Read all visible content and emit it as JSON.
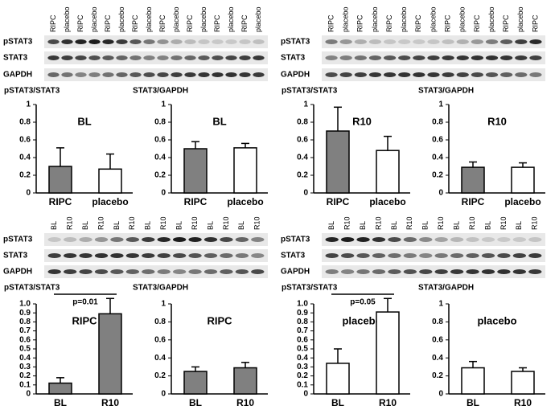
{
  "blots": [
    {
      "lanes": [
        "RIPC",
        "placebo",
        "RIPC",
        "placebo",
        "RIPC",
        "placebo",
        "RIPC",
        "placebo",
        "RIPC",
        "placebo",
        "RIPC",
        "placebo",
        "RIPC",
        "placebo",
        "RIPC",
        "placebo"
      ],
      "rows": [
        "pSTAT3",
        "STAT3",
        "GAPDH"
      ]
    },
    {
      "lanes": [
        "RIPC",
        "placebo",
        "RIPC",
        "placebo",
        "RIPC",
        "placebo",
        "RIPC",
        "placebo",
        "RIPC",
        "placebo",
        "RIPC",
        "placebo",
        "RIPC",
        "placebo",
        "RIPC"
      ],
      "rows": [
        "pSTAT3",
        "STAT3",
        "GAPDH"
      ]
    },
    {
      "lanes": [
        "BL",
        "R10",
        "BL",
        "R10",
        "BL",
        "R10",
        "BL",
        "R10",
        "BL",
        "R10",
        "BL",
        "R10",
        "BL",
        "R10"
      ],
      "rows": [
        "pSTAT3",
        "STAT3",
        "GAPDH"
      ]
    },
    {
      "lanes": [
        "BL",
        "R10",
        "BL",
        "R10",
        "BL",
        "R10",
        "BL",
        "R10",
        "BL",
        "R10",
        "BL",
        "R10",
        "BL",
        "R10"
      ],
      "rows": [
        "pSTAT3",
        "STAT3",
        "GAPDH"
      ]
    }
  ],
  "chart_data": [
    {
      "type": "bar",
      "title": "BL",
      "y_label": "pSTAT3/STAT3",
      "categories": [
        "RIPC",
        "placebo"
      ],
      "values": [
        0.3,
        0.27
      ],
      "errors": [
        0.21,
        0.17
      ],
      "colors": [
        "#808080",
        "#ffffff"
      ],
      "ylim": [
        0,
        1
      ],
      "yticks": [
        0,
        0.2,
        0.4,
        0.6,
        0.8,
        1
      ]
    },
    {
      "type": "bar",
      "title": "BL",
      "y_label": "STAT3/GAPDH",
      "categories": [
        "RIPC",
        "placebo"
      ],
      "values": [
        0.5,
        0.51
      ],
      "errors": [
        0.08,
        0.05
      ],
      "colors": [
        "#808080",
        "#ffffff"
      ],
      "ylim": [
        0,
        1
      ],
      "yticks": [
        0,
        0.2,
        0.4,
        0.6,
        0.8,
        1
      ]
    },
    {
      "type": "bar",
      "title": "R10",
      "y_label": "pSTAT3/STAT3",
      "categories": [
        "RIPC",
        "placebo"
      ],
      "values": [
        0.7,
        0.48
      ],
      "errors": [
        0.27,
        0.16
      ],
      "colors": [
        "#808080",
        "#ffffff"
      ],
      "ylim": [
        0,
        1
      ],
      "yticks": [
        0,
        0.2,
        0.4,
        0.6,
        0.8,
        1
      ]
    },
    {
      "type": "bar",
      "title": "R10",
      "y_label": "STAT3/GAPDH",
      "categories": [
        "RIPC",
        "placebo"
      ],
      "values": [
        0.29,
        0.29
      ],
      "errors": [
        0.06,
        0.05
      ],
      "colors": [
        "#808080",
        "#ffffff"
      ],
      "ylim": [
        0,
        1
      ],
      "yticks": [
        0,
        0.2,
        0.4,
        0.6,
        0.8,
        1
      ]
    },
    {
      "type": "bar",
      "title": "RIPC",
      "y_label": "pSTAT3/STAT3",
      "annotation": "p=0.01",
      "categories": [
        "BL",
        "R10"
      ],
      "values": [
        0.12,
        0.89
      ],
      "errors": [
        0.06,
        0.17
      ],
      "colors": [
        "#808080",
        "#808080"
      ],
      "ylim": [
        0,
        1
      ],
      "yticks": [
        0,
        0.1,
        0.2,
        0.3,
        0.4,
        0.5,
        0.6,
        0.7,
        0.8,
        0.9,
        {
          "value": 1,
          "label": "1.0"
        }
      ]
    },
    {
      "type": "bar",
      "title": "RIPC",
      "y_label": "STAT3/GAPDH",
      "categories": [
        "BL",
        "R10"
      ],
      "values": [
        0.25,
        0.29
      ],
      "errors": [
        0.05,
        0.06
      ],
      "colors": [
        "#808080",
        "#808080"
      ],
      "ylim": [
        0,
        1
      ],
      "yticks": [
        0,
        0.2,
        0.4,
        0.6,
        0.8,
        1
      ]
    },
    {
      "type": "bar",
      "title": "placebo",
      "y_label": "pSTAT3/STAT3",
      "annotation": "p=0.05",
      "categories": [
        "BL",
        "R10"
      ],
      "values": [
        0.34,
        0.91
      ],
      "errors": [
        0.16,
        0.15
      ],
      "colors": [
        "#ffffff",
        "#ffffff"
      ],
      "ylim": [
        0,
        1
      ],
      "yticks": [
        0,
        0.1,
        0.2,
        0.3,
        0.4,
        0.5,
        0.6,
        0.7,
        0.8,
        0.9,
        {
          "value": 1,
          "label": "1.0"
        }
      ]
    },
    {
      "type": "bar",
      "title": "placebo",
      "y_label": "STAT3/GAPDH",
      "categories": [
        "BL",
        "R10"
      ],
      "values": [
        0.29,
        0.25
      ],
      "errors": [
        0.07,
        0.04
      ],
      "colors": [
        "#ffffff",
        "#ffffff"
      ],
      "ylim": [
        0,
        1
      ],
      "yticks": [
        0,
        0.2,
        0.4,
        0.6,
        0.8,
        1
      ]
    }
  ]
}
